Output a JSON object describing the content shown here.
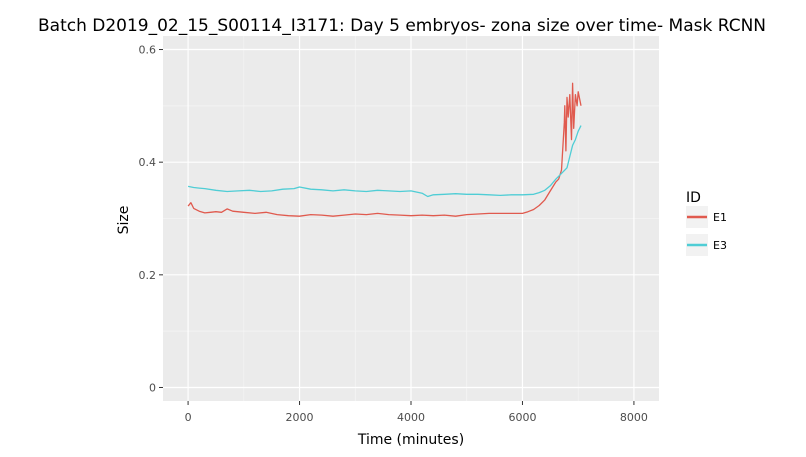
{
  "chart_data": {
    "type": "line",
    "title": "Batch D2019_02_15_S00114_I3171: Day 5 embryos- zona size over time- Mask RCNN",
    "xlabel": "Time (minutes)",
    "ylabel": "Size",
    "xlim": [
      -450,
      8450
    ],
    "ylim": [
      -0.024,
      0.624
    ],
    "x_ticks": [
      0,
      2000,
      4000,
      6000,
      8000
    ],
    "x_tick_labels": [
      "0",
      "2000",
      "4000",
      "6000",
      "8000"
    ],
    "y_ticks": [
      0,
      0.2,
      0.4,
      0.6
    ],
    "y_tick_labels": [
      "0",
      "0.2",
      "0.4",
      "0.6"
    ],
    "grid": true,
    "legend": {
      "title": "ID",
      "position": "right"
    },
    "series": [
      {
        "name": "E1",
        "color": "#e05a4e",
        "points": [
          [
            0,
            0.322
          ],
          [
            50,
            0.328
          ],
          [
            100,
            0.318
          ],
          [
            200,
            0.313
          ],
          [
            300,
            0.31
          ],
          [
            400,
            0.311
          ],
          [
            500,
            0.312
          ],
          [
            600,
            0.311
          ],
          [
            700,
            0.317
          ],
          [
            800,
            0.313
          ],
          [
            1000,
            0.311
          ],
          [
            1200,
            0.309
          ],
          [
            1400,
            0.311
          ],
          [
            1600,
            0.307
          ],
          [
            1800,
            0.305
          ],
          [
            2000,
            0.304
          ],
          [
            2200,
            0.307
          ],
          [
            2400,
            0.306
          ],
          [
            2600,
            0.304
          ],
          [
            2800,
            0.306
          ],
          [
            3000,
            0.308
          ],
          [
            3200,
            0.307
          ],
          [
            3400,
            0.309
          ],
          [
            3600,
            0.307
          ],
          [
            3800,
            0.306
          ],
          [
            4000,
            0.305
          ],
          [
            4200,
            0.306
          ],
          [
            4400,
            0.305
          ],
          [
            4600,
            0.306
          ],
          [
            4800,
            0.304
          ],
          [
            5000,
            0.307
          ],
          [
            5200,
            0.308
          ],
          [
            5400,
            0.309
          ],
          [
            5600,
            0.309
          ],
          [
            5800,
            0.309
          ],
          [
            6000,
            0.309
          ],
          [
            6100,
            0.312
          ],
          [
            6200,
            0.316
          ],
          [
            6300,
            0.323
          ],
          [
            6400,
            0.333
          ],
          [
            6500,
            0.349
          ],
          [
            6600,
            0.365
          ],
          [
            6650,
            0.37
          ],
          [
            6700,
            0.386
          ],
          [
            6750,
            0.47
          ],
          [
            6760,
            0.5
          ],
          [
            6780,
            0.42
          ],
          [
            6800,
            0.515
          ],
          [
            6820,
            0.48
          ],
          [
            6850,
            0.52
          ],
          [
            6880,
            0.44
          ],
          [
            6900,
            0.54
          ],
          [
            6920,
            0.46
          ],
          [
            6950,
            0.52
          ],
          [
            6980,
            0.5
          ],
          [
            7000,
            0.525
          ],
          [
            7030,
            0.51
          ],
          [
            7050,
            0.5
          ]
        ]
      },
      {
        "name": "E3",
        "color": "#4fcdd5",
        "points": [
          [
            0,
            0.357
          ],
          [
            100,
            0.355
          ],
          [
            200,
            0.354
          ],
          [
            300,
            0.353
          ],
          [
            500,
            0.35
          ],
          [
            700,
            0.348
          ],
          [
            900,
            0.349
          ],
          [
            1100,
            0.35
          ],
          [
            1300,
            0.348
          ],
          [
            1500,
            0.349
          ],
          [
            1700,
            0.352
          ],
          [
            1900,
            0.353
          ],
          [
            2000,
            0.356
          ],
          [
            2200,
            0.352
          ],
          [
            2400,
            0.351
          ],
          [
            2600,
            0.349
          ],
          [
            2800,
            0.351
          ],
          [
            3000,
            0.349
          ],
          [
            3200,
            0.348
          ],
          [
            3400,
            0.35
          ],
          [
            3600,
            0.349
          ],
          [
            3800,
            0.348
          ],
          [
            4000,
            0.349
          ],
          [
            4200,
            0.345
          ],
          [
            4300,
            0.339
          ],
          [
            4400,
            0.342
          ],
          [
            4600,
            0.343
          ],
          [
            4800,
            0.344
          ],
          [
            5000,
            0.343
          ],
          [
            5200,
            0.343
          ],
          [
            5400,
            0.342
          ],
          [
            5600,
            0.341
          ],
          [
            5800,
            0.342
          ],
          [
            6000,
            0.342
          ],
          [
            6200,
            0.343
          ],
          [
            6300,
            0.346
          ],
          [
            6400,
            0.35
          ],
          [
            6500,
            0.358
          ],
          [
            6600,
            0.37
          ],
          [
            6700,
            0.38
          ],
          [
            6800,
            0.39
          ],
          [
            6850,
            0.41
          ],
          [
            6900,
            0.43
          ],
          [
            6950,
            0.44
          ],
          [
            7000,
            0.455
          ],
          [
            7050,
            0.465
          ]
        ]
      }
    ]
  }
}
